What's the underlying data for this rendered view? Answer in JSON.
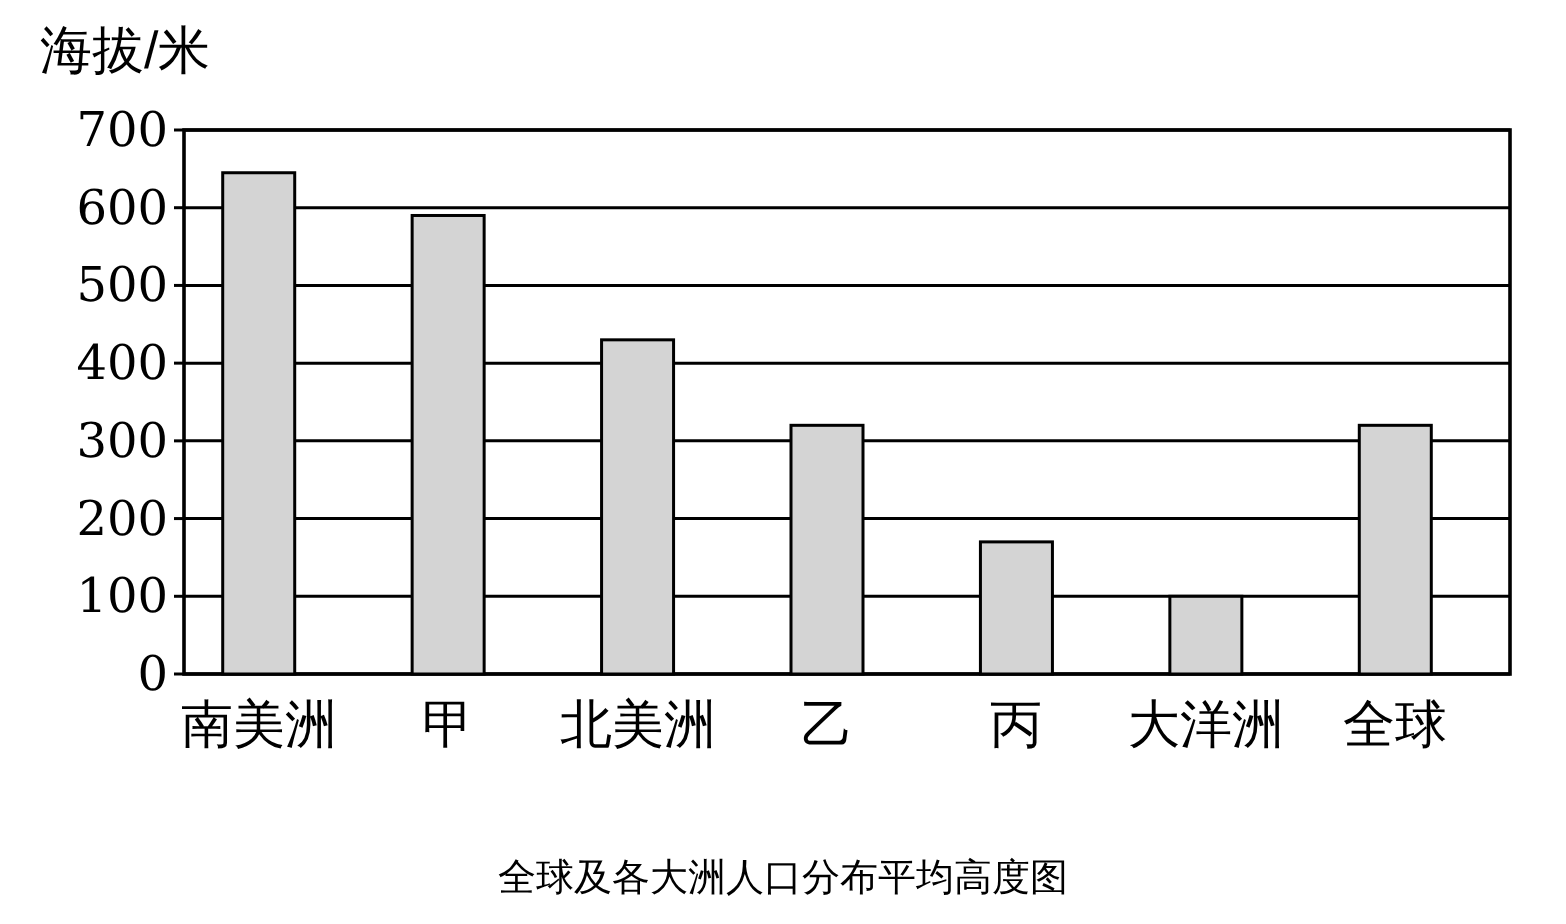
{
  "chart_data": {
    "type": "bar",
    "title": "全球及各大洲人口分布平均高度图",
    "ylabel": "海拔/米",
    "categories": [
      "南美洲",
      "甲",
      "北美洲",
      "乙",
      "丙",
      "大洋洲",
      "全球"
    ],
    "values": [
      645,
      590,
      430,
      320,
      170,
      100,
      320
    ],
    "color": "#d4d4d4",
    "ylim": [
      0,
      700
    ],
    "yticks": [
      0,
      100,
      200,
      300,
      400,
      500,
      600,
      700
    ],
    "grid": "y"
  }
}
